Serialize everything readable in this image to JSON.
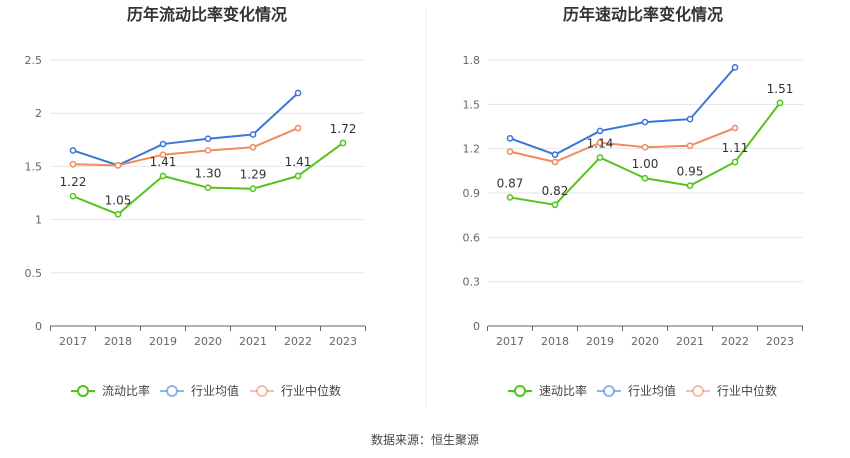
{
  "source_text": "数据来源：恒生聚源",
  "colors": {
    "green": "#52c41a",
    "blue": "#3b75d8",
    "orange": "#ef8b5e"
  },
  "chart_data": [
    {
      "type": "line",
      "title": "历年流动比率变化情况",
      "categories": [
        "2017",
        "2018",
        "2019",
        "2020",
        "2021",
        "2022",
        "2023"
      ],
      "ylim": [
        0,
        2.5
      ],
      "yticks": [
        "0",
        "0.5",
        "1",
        "1.5",
        "2",
        "2.5"
      ],
      "ytick_values": [
        0,
        0.5,
        1,
        1.5,
        2,
        2.5
      ],
      "legend_position": "bottom",
      "series": [
        {
          "name": "流动比率",
          "color": "#52c41a",
          "values": [
            1.22,
            1.05,
            1.41,
            1.3,
            1.29,
            1.41,
            1.72
          ],
          "labels": [
            "1.22",
            "1.05",
            "1.41",
            "1.30",
            "1.29",
            "1.41",
            "1.72"
          ]
        },
        {
          "name": "行业均值",
          "color": "#3b75d8",
          "values": [
            1.65,
            1.51,
            1.71,
            1.76,
            1.8,
            2.19,
            null
          ]
        },
        {
          "name": "行业中位数",
          "color": "#ef8b5e",
          "values": [
            1.52,
            1.51,
            1.61,
            1.65,
            1.68,
            1.86,
            null
          ]
        }
      ]
    },
    {
      "type": "line",
      "title": "历年速动比率变化情况",
      "categories": [
        "2017",
        "2018",
        "2019",
        "2020",
        "2021",
        "2022",
        "2023"
      ],
      "ylim": [
        0,
        1.8
      ],
      "yticks": [
        "0",
        "0.3",
        "0.6",
        "0.9",
        "1.2",
        "1.5",
        "1.8"
      ],
      "ytick_values": [
        0,
        0.3,
        0.6,
        0.9,
        1.2,
        1.5,
        1.8
      ],
      "legend_position": "bottom",
      "series": [
        {
          "name": "速动比率",
          "color": "#52c41a",
          "values": [
            0.87,
            0.82,
            1.14,
            1.0,
            0.95,
            1.11,
            1.51
          ],
          "labels": [
            "0.87",
            "0.82",
            "1.14",
            "1.00",
            "0.95",
            "1.11",
            "1.51"
          ]
        },
        {
          "name": "行业均值",
          "color": "#3b75d8",
          "values": [
            1.27,
            1.16,
            1.32,
            1.38,
            1.4,
            1.75,
            null
          ]
        },
        {
          "name": "行业中位数",
          "color": "#ef8b5e",
          "values": [
            1.18,
            1.11,
            1.24,
            1.21,
            1.22,
            1.34,
            null
          ]
        }
      ]
    }
  ]
}
